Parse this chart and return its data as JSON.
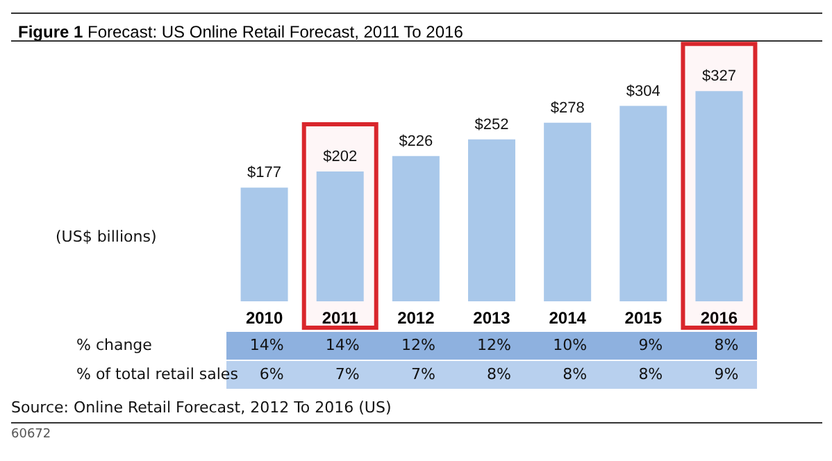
{
  "chart_data": {
    "type": "bar",
    "title": "Figure 1 Forecast: US Online Retail Forecast, 2011 To 2016",
    "ylabel": "(US$ billions)",
    "categories": [
      "2010",
      "2011",
      "2012",
      "2013",
      "2014",
      "2015",
      "2016"
    ],
    "values": [
      177,
      202,
      226,
      252,
      278,
      304,
      327
    ],
    "value_labels": [
      "$177",
      "$202",
      "$226",
      "$252",
      "$278",
      "$304",
      "$327"
    ],
    "color": "#a9c8ea",
    "bands": [
      {
        "axis": "x",
        "from": "2011",
        "to": "2011",
        "color": "#d9262c"
      },
      {
        "axis": "x",
        "from": "2016",
        "to": "2016",
        "color": "#d9262c"
      }
    ],
    "annotations": [
      "% change",
      "14%",
      "14%",
      "12%",
      "12%",
      "10%",
      "9%",
      "8%",
      "% of total retail sales",
      "6%",
      "7%",
      "7%",
      "8%",
      "8%",
      "8%",
      "9%",
      "Source: Online Retail Forecast, 2012 To 2016 (US)",
      "60672"
    ]
  }
}
